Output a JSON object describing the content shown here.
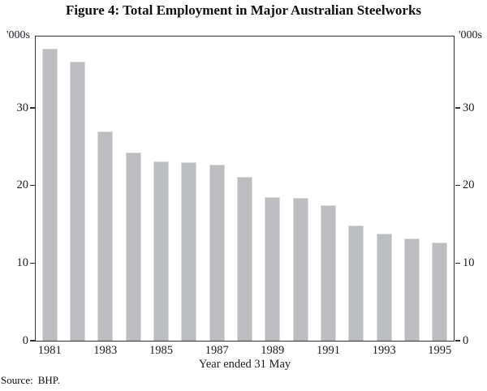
{
  "figure": {
    "title": "Figure 4: Total Employment in Major Australian Steelworks",
    "left_axis_unit": "'000s",
    "right_axis_unit": "'000s",
    "x_axis_title": "Year ended 31 May",
    "source_label": "Source:",
    "source_value": "BHP."
  },
  "chart_data": {
    "type": "bar",
    "title": "Figure 4: Total Employment in Major Australian Steelworks",
    "categories": [
      "1981",
      "1982",
      "1983",
      "1984",
      "1985",
      "1986",
      "1987",
      "1988",
      "1989",
      "1990",
      "1991",
      "1992",
      "1993",
      "1994",
      "1995"
    ],
    "values": [
      37.6,
      36.0,
      27.0,
      24.3,
      23.1,
      23.0,
      22.7,
      21.1,
      18.5,
      18.4,
      17.5,
      14.9,
      13.8,
      13.2,
      12.7
    ],
    "xlabel": "Year ended 31 May",
    "ylabel": "'000s",
    "x_tick_labels": [
      "1981",
      "1983",
      "1985",
      "1987",
      "1989",
      "1991",
      "1993",
      "1995"
    ],
    "y_ticks": [
      0,
      10,
      20,
      30
    ],
    "ylim": [
      0,
      39.2
    ],
    "grid": false,
    "legend": false,
    "unit": "thousands of employees"
  },
  "colors": {
    "bar_fill": "#bcbdc1",
    "bar_edge": "#dadbdd",
    "axis_frame": "#2e2e33",
    "text": "#1b1b22",
    "background": "#ffffff"
  }
}
